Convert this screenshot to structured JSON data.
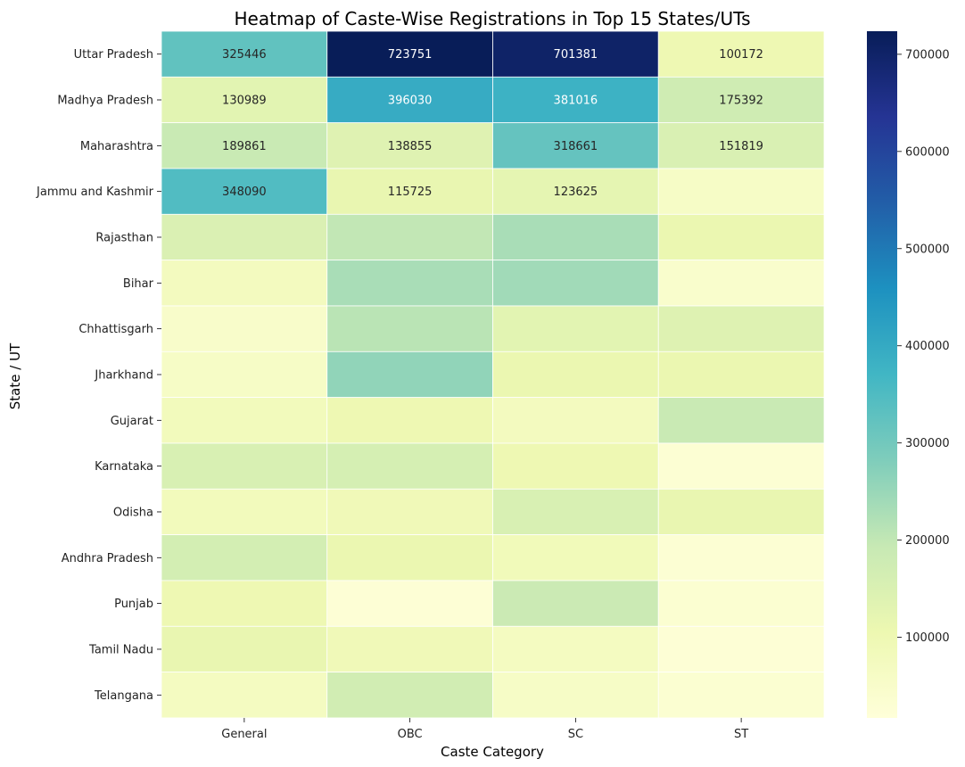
{
  "chart_data": {
    "type": "heatmap",
    "title": "Heatmap of Caste-Wise Registrations in Top 15 States/UTs",
    "xlabel": "Caste Category",
    "ylabel": "State / UT",
    "columns": [
      "General",
      "OBC",
      "SC",
      "ST"
    ],
    "rows": [
      "Uttar Pradesh",
      "Madhya Pradesh",
      "Maharashtra",
      "Jammu and Kashmir",
      "Rajasthan",
      "Bihar",
      "Chhattisgarh",
      "Jharkhand",
      "Gujarat",
      "Karnataka",
      "Odisha",
      "Andhra Pradesh",
      "Punjab",
      "Tamil Nadu",
      "Telangana"
    ],
    "values": [
      [
        325446,
        723751,
        701381,
        100172
      ],
      [
        130989,
        396030,
        381016,
        175392
      ],
      [
        189861,
        138855,
        318661,
        151819
      ],
      [
        348090,
        115725,
        123625,
        60000
      ],
      [
        150000,
        200000,
        230000,
        110000
      ],
      [
        75000,
        230000,
        240000,
        45000
      ],
      [
        50000,
        210000,
        130000,
        140000
      ],
      [
        60000,
        260000,
        110000,
        110000
      ],
      [
        80000,
        100000,
        75000,
        190000
      ],
      [
        155000,
        160000,
        100000,
        30000
      ],
      [
        80000,
        90000,
        155000,
        115000
      ],
      [
        165000,
        110000,
        85000,
        30000
      ],
      [
        100000,
        25000,
        185000,
        35000
      ],
      [
        115000,
        90000,
        70000,
        25000
      ],
      [
        70000,
        170000,
        60000,
        35000
      ]
    ],
    "labeled_rows": 4,
    "labeled_values": [
      [
        "325446",
        "723751",
        "701381",
        "100172"
      ],
      [
        "130989",
        "396030",
        "381016",
        "175392"
      ],
      [
        "189861",
        "138855",
        "318661",
        "151819"
      ],
      [
        "348090",
        "115725",
        "123625",
        ""
      ]
    ],
    "colorbar": {
      "min": 17000,
      "max": 723751,
      "ticks": [
        100000,
        200000,
        300000,
        400000,
        500000,
        600000,
        700000
      ],
      "tick_labels": [
        "100000",
        "200000",
        "300000",
        "400000",
        "500000",
        "600000",
        "700000"
      ],
      "colormap": [
        "#ffffd9",
        "#edf8b1",
        "#c7e9b4",
        "#7fcdbb",
        "#41b6c4",
        "#1d91c0",
        "#225ea8",
        "#253494",
        "#081d58"
      ]
    }
  }
}
